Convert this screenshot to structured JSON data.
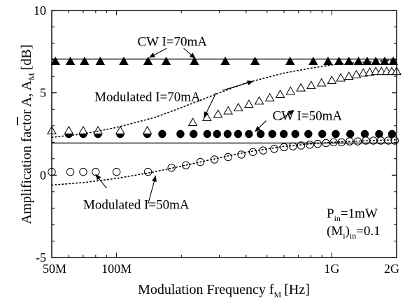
{
  "chart_data": {
    "type": "scatter",
    "xlabel": "Modulation Frequency f",
    "xlabel_sub": "M",
    "xlabel_unit": "[Hz]",
    "ylabel": "Amplification factor A, A",
    "ylabel_sub": "M",
    "ylabel_unit": "[dB]",
    "xscale": "log",
    "xlim": [
      50000000,
      2000000000
    ],
    "ylim": [
      -5,
      10
    ],
    "xticks": [
      {
        "value": 50000000,
        "label": "50M"
      },
      {
        "value": 100000000,
        "label": "100M"
      },
      {
        "value": 1000000000,
        "label": "1G"
      },
      {
        "value": 2000000000,
        "label": "2G"
      }
    ],
    "yticks": [
      {
        "value": -5,
        "label": "-5"
      },
      {
        "value": 0,
        "label": "0"
      },
      {
        "value": 5,
        "label": "5"
      },
      {
        "value": 10,
        "label": "10"
      }
    ],
    "grid": false,
    "series": [
      {
        "name": "CW I=70mA",
        "kind": "markers",
        "marker": "filled-triangle",
        "x": [
          52000000,
          61000000,
          71000000,
          84000000,
          108000000,
          140000000,
          170000000,
          230000000,
          320000000,
          440000000,
          640000000,
          820000000,
          960000000,
          1080000000,
          1200000000,
          1330000000,
          1460000000,
          1600000000,
          1760000000,
          1930000000
        ],
        "y": [
          6.9,
          6.9,
          6.9,
          6.9,
          6.9,
          6.9,
          6.9,
          6.9,
          6.9,
          6.9,
          6.9,
          6.9,
          6.9,
          6.9,
          6.9,
          6.9,
          6.9,
          6.9,
          6.9,
          6.9
        ]
      },
      {
        "name": "CW I=50mA",
        "kind": "markers",
        "marker": "filled-circle",
        "x": [
          60000000,
          70000000,
          82000000,
          104000000,
          139000000,
          163000000,
          198000000,
          228000000,
          264000000,
          293000000,
          328000000,
          367000000,
          412000000,
          467000000,
          529000000,
          598000000,
          677000000,
          778000000,
          903000000,
          1043000000,
          1218000000,
          1423000000,
          1658000000,
          1905000000
        ],
        "y": [
          2.5,
          2.5,
          2.5,
          2.5,
          2.5,
          2.5,
          2.5,
          2.5,
          2.5,
          2.5,
          2.5,
          2.5,
          2.5,
          2.5,
          2.5,
          2.5,
          2.5,
          2.5,
          2.5,
          2.5,
          2.5,
          2.5,
          2.5,
          2.5
        ]
      },
      {
        "name": "Modulated I=70mA",
        "kind": "markers",
        "marker": "open-triangle",
        "x": [
          50000000,
          60000000,
          70000000,
          82000000,
          104000000,
          139000000,
          226000000,
          263000000,
          296000000,
          330000000,
          368000000,
          412000000,
          460000000,
          515000000,
          576000000,
          643000000,
          718000000,
          802000000,
          896000000,
          1000000000,
          1100000000,
          1200000000,
          1300000000,
          1400000000,
          1500000000,
          1600000000,
          1700000000,
          1800000000,
          1900000000,
          2000000000
        ],
        "y": [
          2.7,
          2.7,
          2.7,
          2.7,
          2.7,
          2.7,
          3.2,
          3.5,
          3.7,
          3.9,
          4.1,
          4.3,
          4.5,
          4.7,
          4.9,
          5.1,
          5.3,
          5.45,
          5.6,
          5.75,
          5.9,
          6.0,
          6.1,
          6.2,
          6.25,
          6.3,
          6.3,
          6.3,
          6.3,
          6.3
        ]
      },
      {
        "name": "Modulated I=50mA",
        "kind": "markers",
        "marker": "open-circle",
        "x": [
          50000000,
          61000000,
          70000000,
          80000000,
          100000000,
          140000000,
          180000000,
          210000000,
          245000000,
          285000000,
          330000000,
          380000000,
          430000000,
          480000000,
          540000000,
          600000000,
          660000000,
          720000000,
          790000000,
          860000000,
          940000000,
          1020000000,
          1110000000,
          1210000000,
          1320000000,
          1440000000,
          1560000000,
          1690000000,
          1830000000,
          1960000000
        ],
        "y": [
          0.2,
          0.2,
          0.2,
          0.2,
          0.2,
          0.2,
          0.45,
          0.6,
          0.8,
          0.95,
          1.1,
          1.25,
          1.4,
          1.5,
          1.6,
          1.7,
          1.75,
          1.8,
          1.85,
          1.9,
          1.95,
          2.0,
          2.0,
          2.05,
          2.05,
          2.1,
          2.1,
          2.1,
          2.1,
          2.1
        ]
      },
      {
        "kind": "solid-line",
        "x": [
          50000000,
          2000000000
        ],
        "y": [
          7.05,
          7.05
        ]
      },
      {
        "kind": "solid-line",
        "x": [
          50000000,
          2000000000
        ],
        "y": [
          1.95,
          1.95
        ]
      },
      {
        "kind": "dotted-line",
        "x": [
          50000000,
          70000000,
          100000000,
          150000000,
          200000000,
          300000000,
          400000000,
          600000000,
          800000000,
          1000000000,
          1500000000,
          2000000000
        ],
        "y": [
          2.3,
          2.5,
          2.9,
          3.5,
          4.1,
          5.0,
          5.6,
          6.2,
          6.5,
          6.7,
          6.9,
          7.0
        ]
      },
      {
        "kind": "dotted-line",
        "x": [
          50000000,
          70000000,
          100000000,
          150000000,
          200000000,
          300000000,
          400000000,
          600000000,
          800000000,
          1000000000,
          1500000000,
          2000000000
        ],
        "y": [
          -0.6,
          -0.45,
          -0.2,
          0.2,
          0.55,
          1.05,
          1.4,
          1.75,
          1.9,
          2.0,
          2.1,
          2.15
        ]
      }
    ],
    "annotations": [
      {
        "text": "CW I=70mA",
        "x": 125000000,
        "y": 7.85
      },
      {
        "text": "Modulated I=70mA",
        "x": 79000000,
        "y": 4.5
      },
      {
        "text": "CW I=50mA",
        "x": 530000000,
        "y": 3.35
      },
      {
        "text": "Modulated I=50mA",
        "x": 70000000,
        "y": -2.05
      }
    ],
    "arrows": [
      {
        "from": [
          171000000,
          7.7
        ],
        "to": [
          142000000,
          7.15
        ]
      },
      {
        "from": [
          205000000,
          7.7
        ],
        "to": [
          232000000,
          7.1
        ]
      },
      {
        "from": [
          310000000,
          5.15
        ],
        "to": [
          430000000,
          5.7
        ]
      },
      {
        "from": [
          290000000,
          5.0
        ],
        "to": [
          255000000,
          3.5
        ]
      },
      {
        "from": [
          495000000,
          3.3
        ],
        "to": [
          440000000,
          2.65
        ]
      },
      {
        "from": [
          575000000,
          3.35
        ],
        "to": [
          665000000,
          3.95
        ]
      },
      {
        "from": [
          90000000,
          -0.8
        ],
        "to": [
          80000000,
          0.05
        ]
      },
      {
        "from": [
          140000000,
          -1.75
        ],
        "to": [
          152000000,
          -0.05
        ]
      }
    ],
    "inset": {
      "line1": {
        "main": "P",
        "sub": "in",
        "rest": "=1mW"
      },
      "line2": {
        "main": "(M",
        "sub": "i",
        "mid": ")",
        "sub2": "in",
        "rest": "=0.1"
      }
    }
  }
}
